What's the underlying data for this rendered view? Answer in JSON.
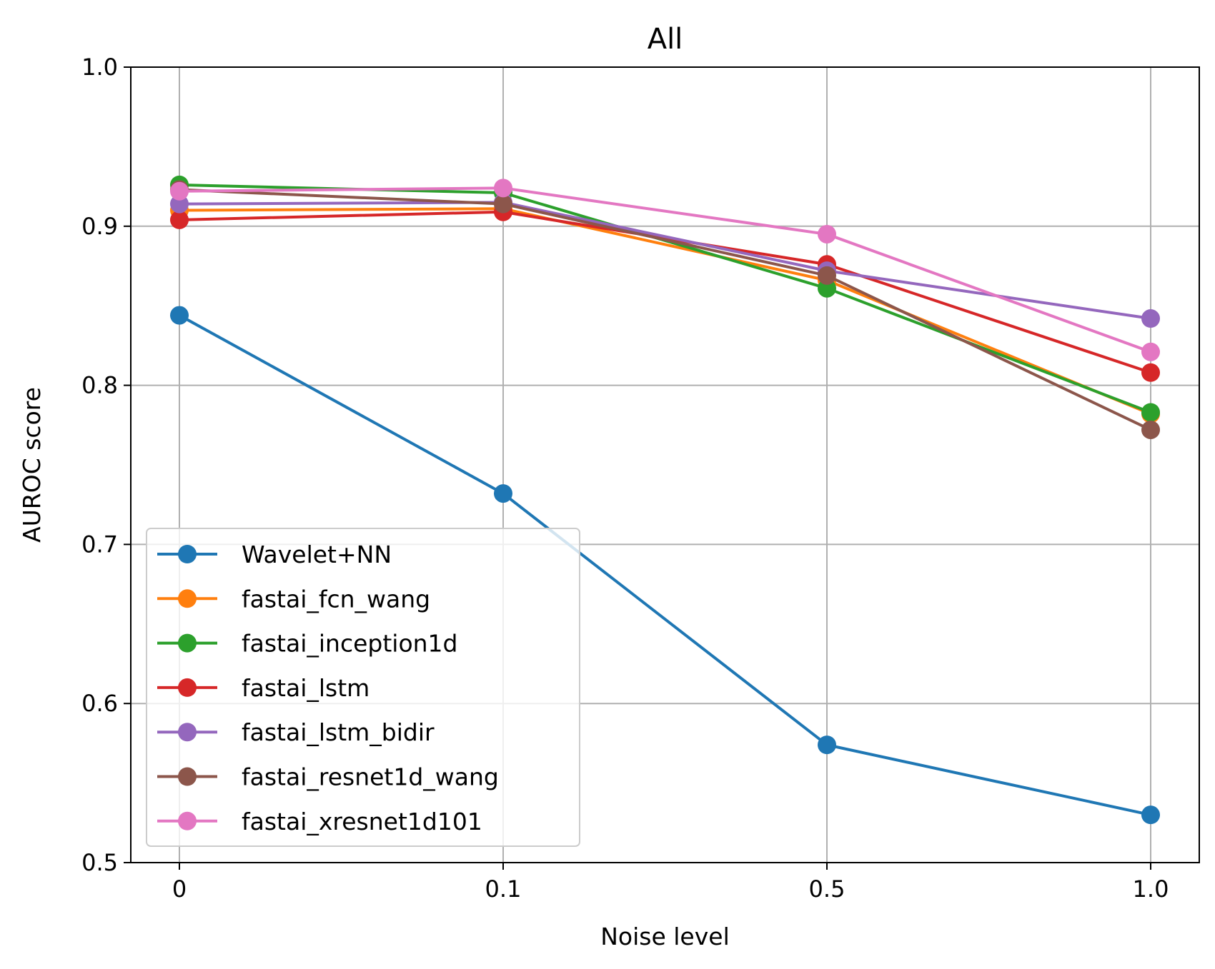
{
  "chart_data": {
    "type": "line",
    "title": "All",
    "xlabel": "Noise level",
    "ylabel": "AUROC score",
    "ylim": [
      0.5,
      1.0
    ],
    "grid": true,
    "legend_position": "lower-left",
    "categories": [
      "0",
      "0.1",
      "0.5",
      "1.0"
    ],
    "yticks": [
      "0.5",
      "0.6",
      "0.7",
      "0.8",
      "0.9",
      "1.0"
    ],
    "series": [
      {
        "name": "Wavelet+NN",
        "color": "#1f77b4",
        "values": [
          0.844,
          0.732,
          0.574,
          0.53
        ]
      },
      {
        "name": "fastai_fcn_wang",
        "color": "#ff7f0e",
        "values": [
          0.91,
          0.911,
          0.866,
          0.782
        ]
      },
      {
        "name": "fastai_inception1d",
        "color": "#2ca02c",
        "values": [
          0.926,
          0.921,
          0.861,
          0.783
        ]
      },
      {
        "name": "fastai_lstm",
        "color": "#d62728",
        "values": [
          0.904,
          0.909,
          0.876,
          0.808
        ]
      },
      {
        "name": "fastai_lstm_bidir",
        "color": "#9467bd",
        "values": [
          0.914,
          0.915,
          0.872,
          0.842
        ]
      },
      {
        "name": "fastai_resnet1d_wang",
        "color": "#8c564b",
        "values": [
          0.923,
          0.914,
          0.869,
          0.772
        ]
      },
      {
        "name": "fastai_xresnet1d101",
        "color": "#e377c2",
        "values": [
          0.922,
          0.924,
          0.895,
          0.821
        ]
      }
    ]
  }
}
